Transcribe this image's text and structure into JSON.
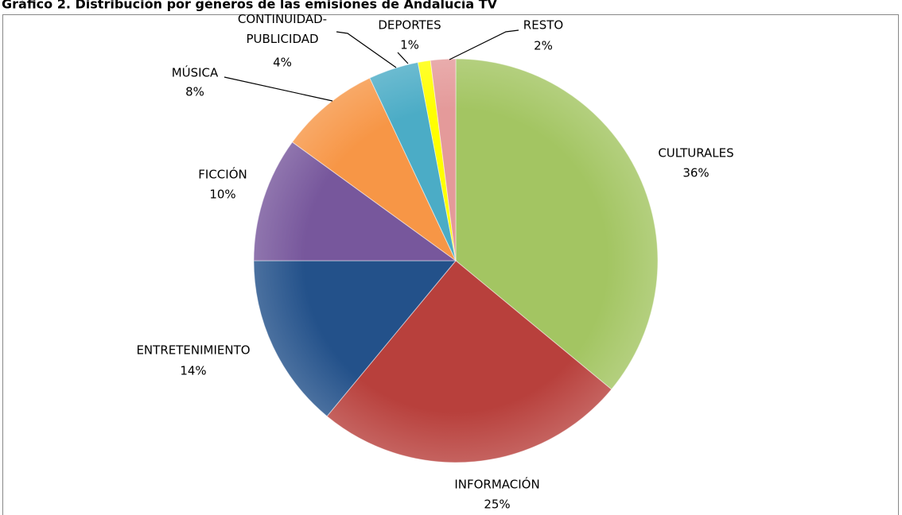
{
  "chart_data": {
    "type": "pie",
    "title": "Gráfico 2. Distribución por géneros de las emisiones de Andalucía TV",
    "categories": [
      "CULTURALES",
      "INFORMACIÓN",
      "ENTRETENIMIENTO",
      "FICCIÓN",
      "MÚSICA",
      "CONTINUIDAD-PUBLICIDAD",
      "DEPORTES",
      "RESTO"
    ],
    "values": [
      36,
      25,
      14,
      10,
      8,
      4,
      1,
      2
    ],
    "value_labels": [
      "36%",
      "25%",
      "14%",
      "10%",
      "8%",
      "4%",
      "1%",
      "2%"
    ],
    "colors": [
      "#a3c562",
      "#b8403c",
      "#23518a",
      "#77579c",
      "#f79646",
      "#4bacc6",
      "#ffff00",
      "#e49a9a"
    ]
  }
}
